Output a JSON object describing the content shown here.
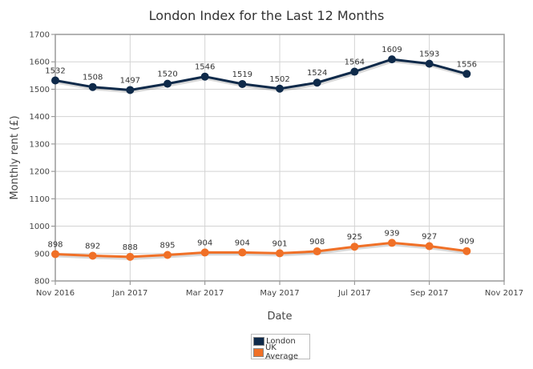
{
  "chart_data": {
    "type": "line",
    "title": "London Index for the Last 12 Months",
    "xlabel": "Date",
    "ylabel": "Monthly rent (£)",
    "ylim": [
      800,
      1700
    ],
    "yticks": [
      800,
      900,
      1000,
      1100,
      1200,
      1300,
      1400,
      1500,
      1600,
      1700
    ],
    "x": [
      "2016-11",
      "2016-12",
      "2017-01",
      "2017-02",
      "2017-03",
      "2017-04",
      "2017-05",
      "2017-06",
      "2017-07",
      "2017-08",
      "2017-09",
      "2017-10"
    ],
    "x_tick_labels": [
      {
        "at": "2016-11",
        "label": "Nov 2016"
      },
      {
        "at": "2017-01",
        "label": "Jan 2017"
      },
      {
        "at": "2017-03",
        "label": "Mar 2017"
      },
      {
        "at": "2017-05",
        "label": "May 2017"
      },
      {
        "at": "2017-07",
        "label": "Jul 2017"
      },
      {
        "at": "2017-09",
        "label": "Sep 2017"
      },
      {
        "at": "2017-11",
        "label": "Nov 2017"
      }
    ],
    "xlim": [
      "2016-11",
      "2017-11"
    ],
    "grid": true,
    "legend_position": "bottom-center",
    "series": [
      {
        "name": "London",
        "color": "#0f2a4a",
        "values": [
          1532,
          1508,
          1497,
          1520,
          1546,
          1519,
          1502,
          1524,
          1564,
          1609,
          1593,
          1556
        ]
      },
      {
        "name": "UK Average",
        "color": "#f07027",
        "values": [
          898,
          892,
          888,
          895,
          904,
          904,
          901,
          908,
          925,
          939,
          927,
          909
        ]
      }
    ]
  }
}
